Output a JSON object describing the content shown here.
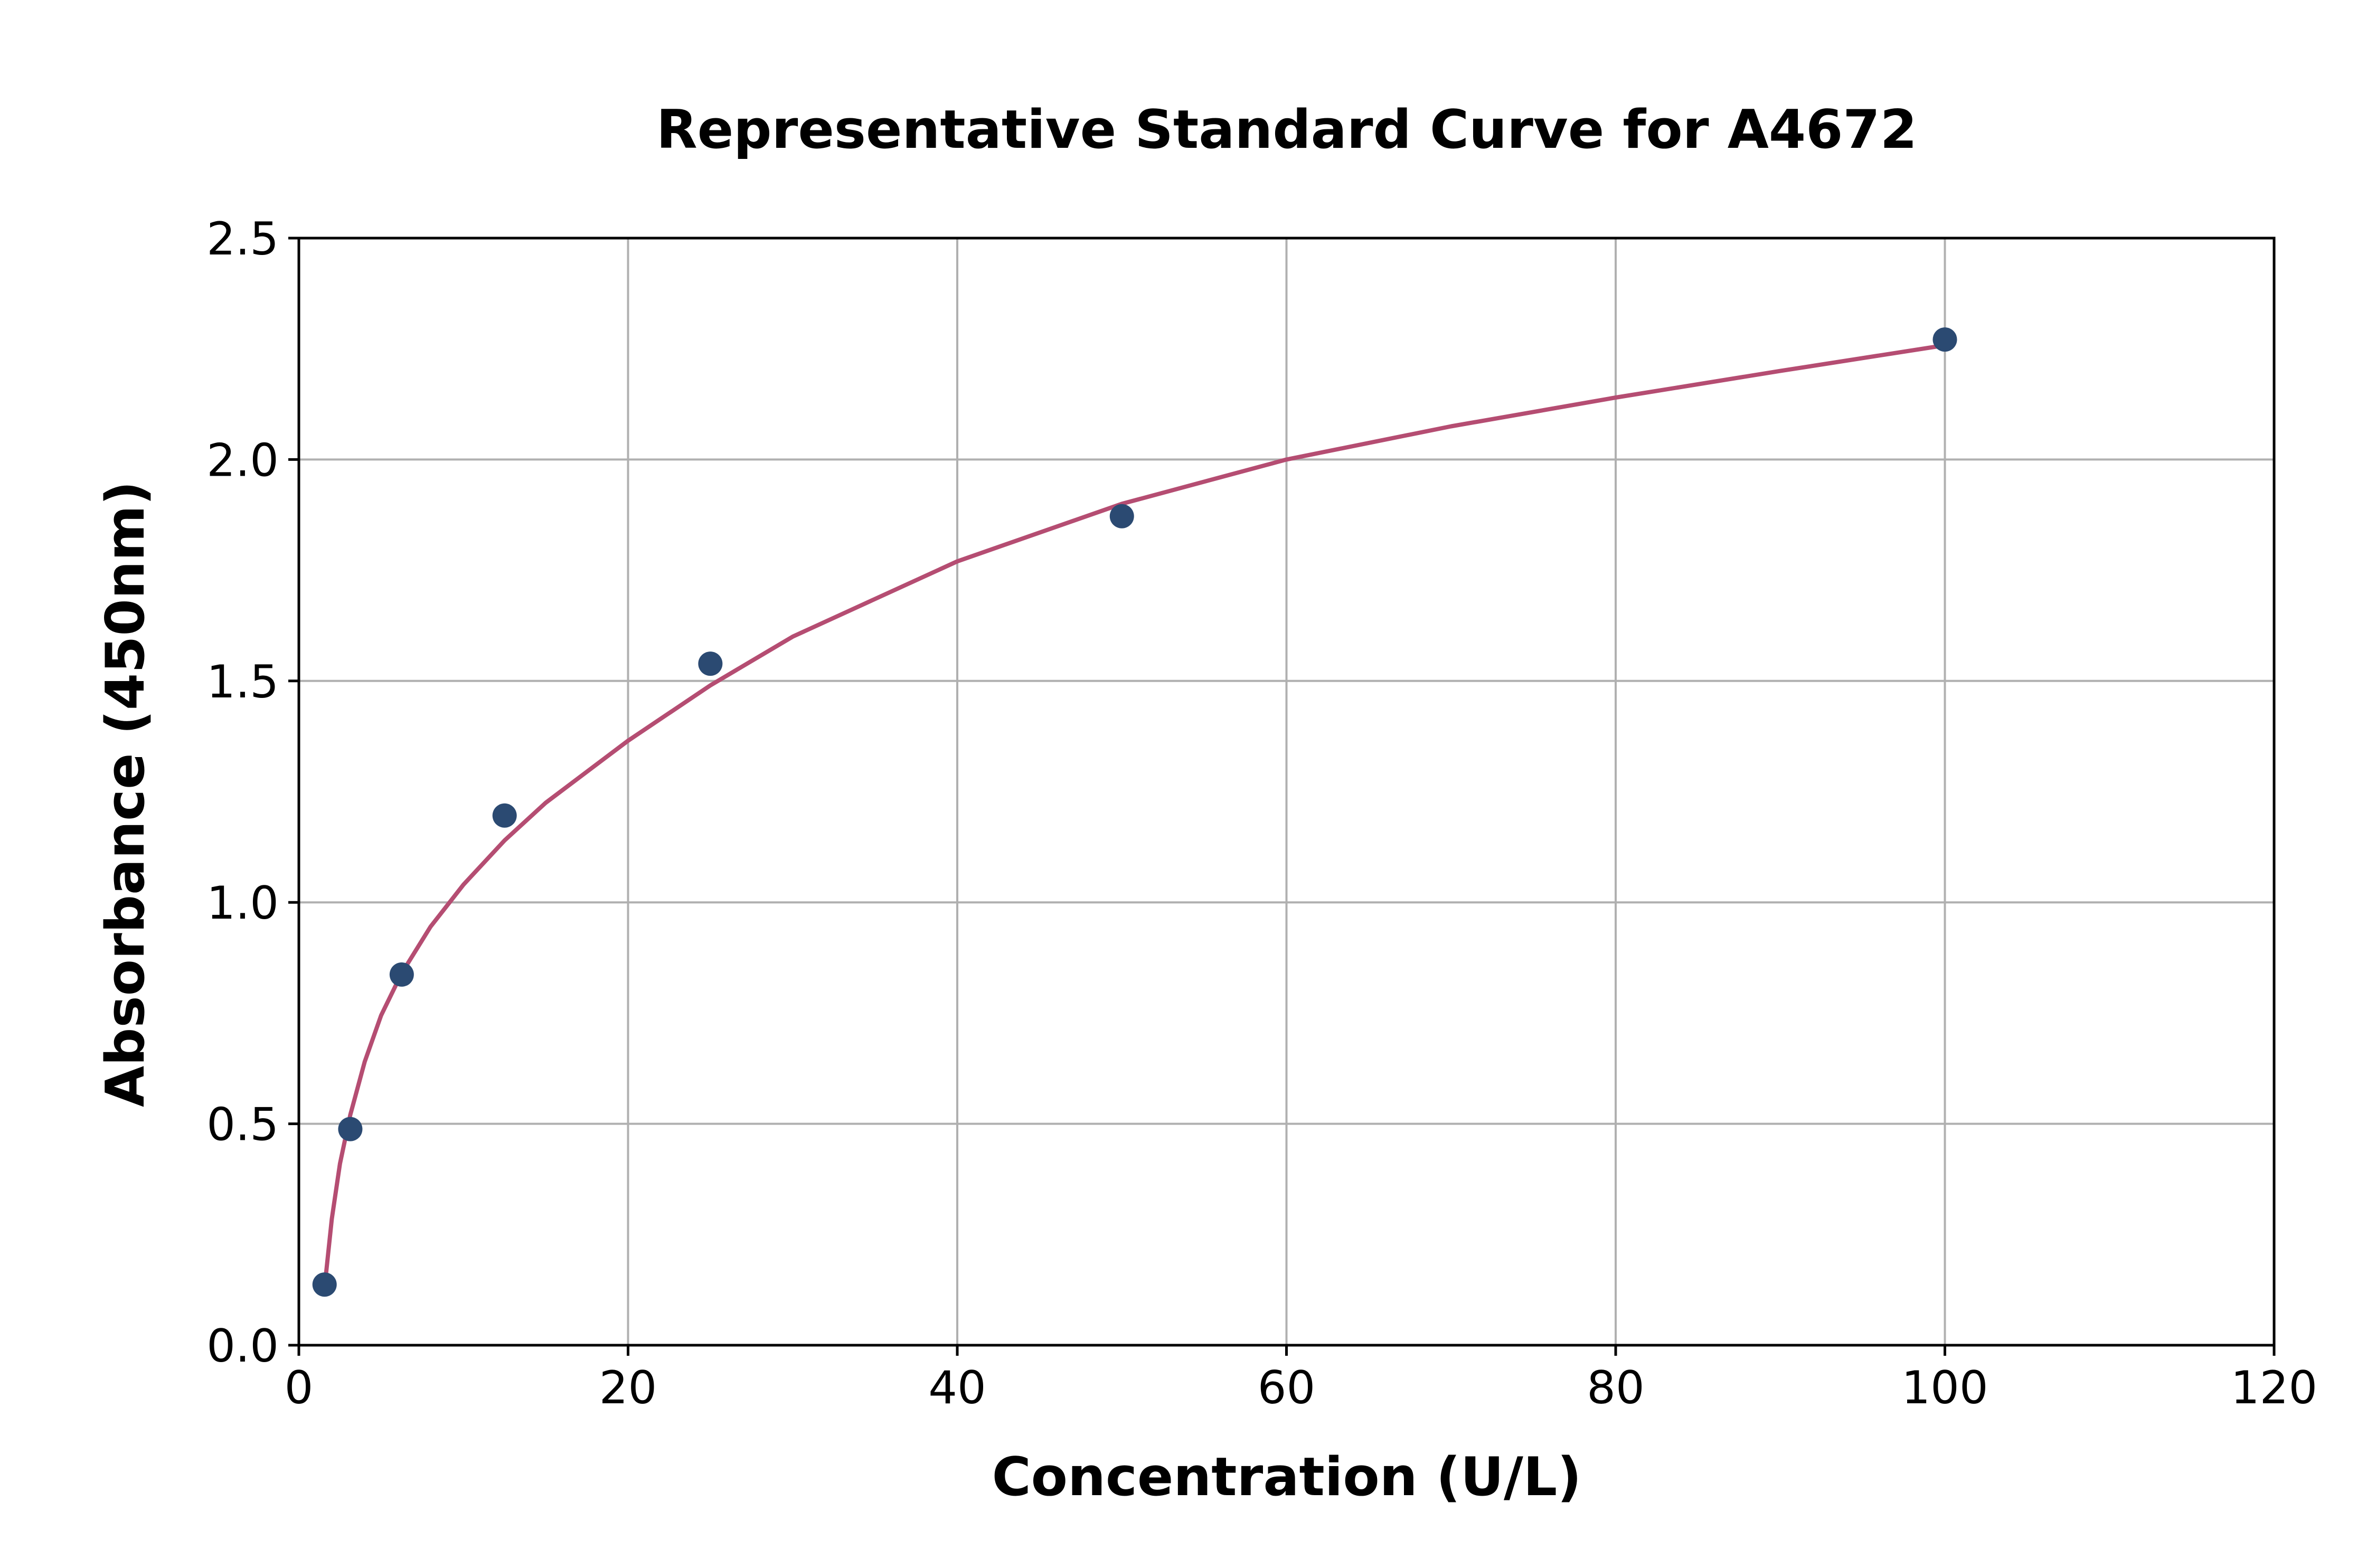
{
  "chart_data": {
    "type": "scatter",
    "title": "Representative Standard Curve for A4672",
    "xlabel": "Concentration (U/L)",
    "ylabel": "Absorbance (450nm)",
    "xlim": [
      0,
      120
    ],
    "ylim": [
      0,
      2.5
    ],
    "xticks": [
      0,
      20,
      40,
      60,
      80,
      100,
      120
    ],
    "yticks": [
      0.0,
      0.5,
      1.0,
      1.5,
      2.0,
      2.5
    ],
    "xtick_labels": [
      "0",
      "20",
      "40",
      "60",
      "80",
      "100",
      "120"
    ],
    "ytick_labels": [
      "0.0",
      "0.5",
      "1.0",
      "1.5",
      "2.0",
      "2.5"
    ],
    "grid": true,
    "series": [
      {
        "x": [
          1.5625,
          3.125,
          6.25,
          12.5,
          25,
          50,
          100
        ],
        "y": [
          0.137,
          0.488,
          0.837,
          1.196,
          1.539,
          1.872,
          2.271
        ],
        "marker": "circle",
        "color": "#2b4a72"
      }
    ],
    "fit_curve": {
      "type": "power-law",
      "color": "#b54d72",
      "x": [
        1.5625,
        2,
        2.5,
        3.125,
        4,
        5,
        6.25,
        8,
        10,
        12.5,
        15,
        20,
        25,
        30,
        40,
        50,
        60,
        70,
        80,
        90,
        100
      ],
      "y": [
        0.13,
        0.285,
        0.41,
        0.52,
        0.64,
        0.745,
        0.84,
        0.945,
        1.04,
        1.14,
        1.225,
        1.365,
        1.49,
        1.6,
        1.77,
        1.9,
        2.0,
        2.075,
        2.14,
        2.2,
        2.258
      ]
    }
  }
}
